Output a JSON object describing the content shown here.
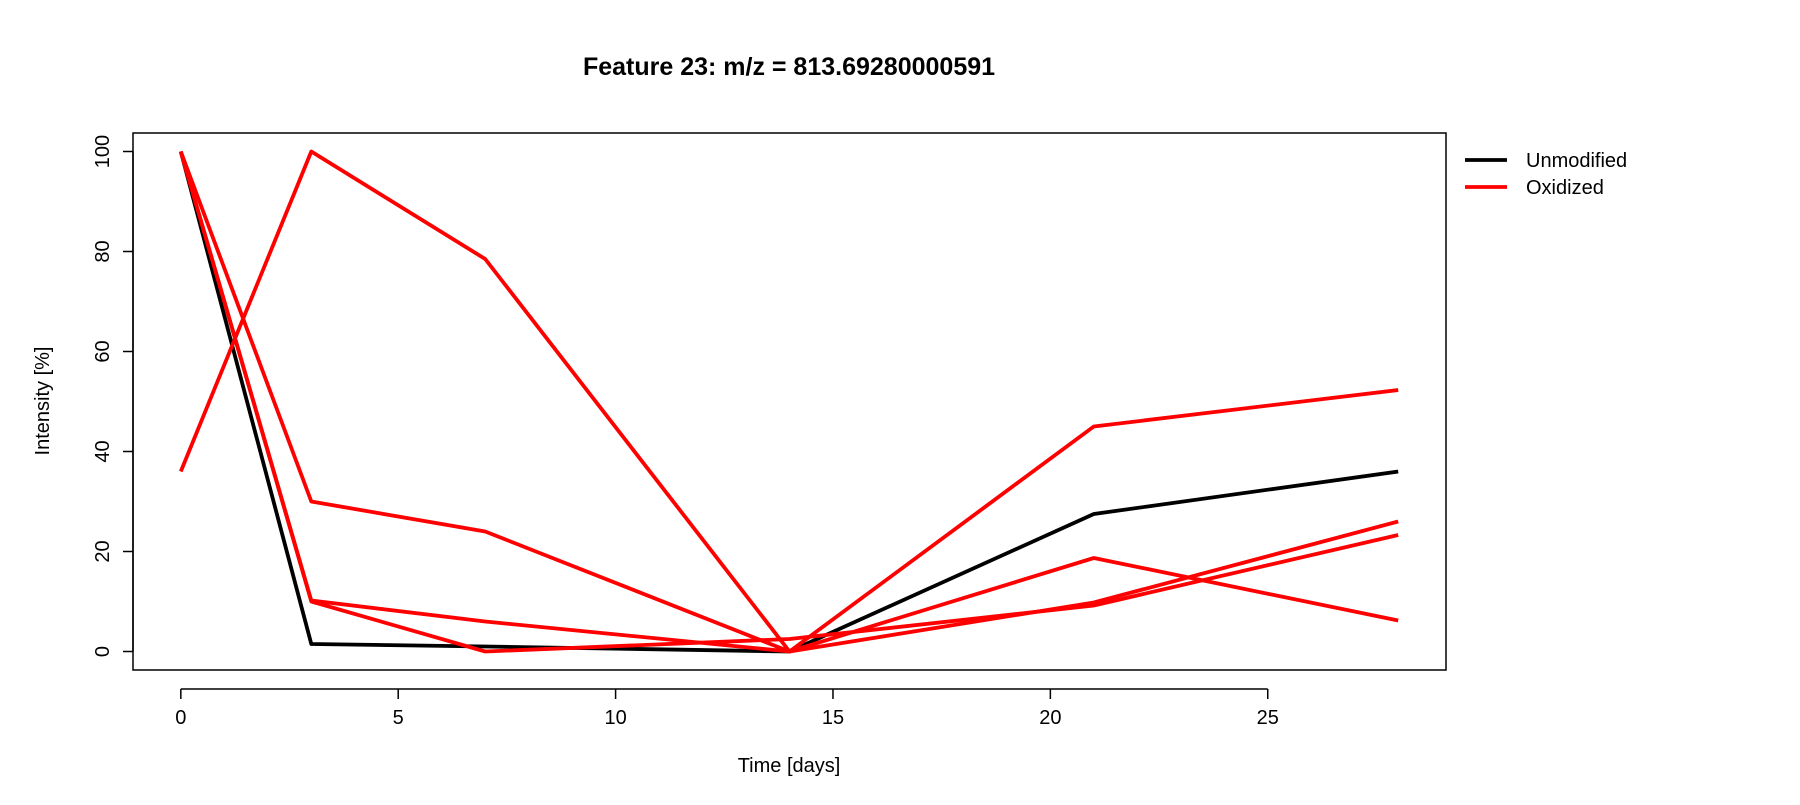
{
  "chart_data": {
    "type": "line",
    "title": "Feature 23: m/z = 813.69280000591",
    "xlabel": "Time [days]",
    "ylabel": "Intensity [%]",
    "xlim": [
      -1.1,
      29.1
    ],
    "ylim": [
      -3.7,
      103.7
    ],
    "x_ticks": [
      0,
      5,
      10,
      15,
      20,
      25
    ],
    "y_ticks": [
      0,
      20,
      40,
      60,
      80,
      100
    ],
    "grid": false,
    "legend_position": "top-right outside plot",
    "legend": [
      {
        "label": "Unmodified",
        "color": "#000000"
      },
      {
        "label": "Oxidized",
        "color": "#ff0000"
      }
    ],
    "series": [
      {
        "group": "Unmodified",
        "color": "#000000",
        "x": [
          0,
          3,
          7,
          14,
          21,
          28
        ],
        "y": [
          100,
          1.5,
          1,
          0,
          27.5,
          36
        ]
      },
      {
        "group": "Oxidized",
        "color": "#ff0000",
        "x": [
          0,
          3,
          7,
          14,
          21,
          28
        ],
        "y": [
          36,
          100,
          78.5,
          0,
          45,
          52.3
        ]
      },
      {
        "group": "Oxidized",
        "color": "#ff0000",
        "x": [
          0,
          3,
          7,
          14,
          21,
          28
        ],
        "y": [
          100,
          30,
          24,
          0,
          18.7,
          6.2
        ]
      },
      {
        "group": "Oxidized",
        "color": "#ff0000",
        "x": [
          0,
          3,
          7,
          14,
          21,
          28
        ],
        "y": [
          100,
          10.2,
          6,
          0,
          9.8,
          26
        ]
      },
      {
        "group": "Oxidized",
        "color": "#ff0000",
        "x": [
          0,
          3,
          7,
          14,
          21,
          28
        ],
        "y": [
          100,
          10,
          0,
          2.5,
          9.2,
          23.3
        ]
      }
    ]
  }
}
